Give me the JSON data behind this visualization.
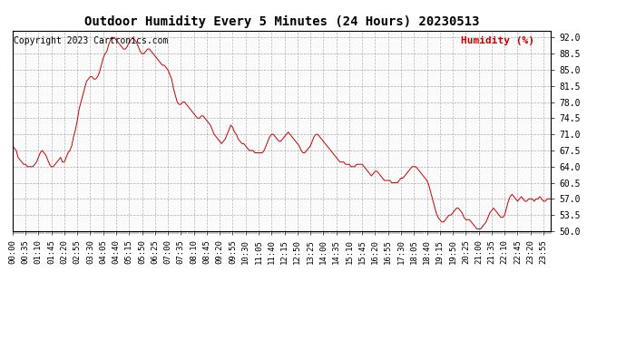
{
  "title": "Outdoor Humidity Every 5 Minutes (24 Hours) 20230513",
  "copyright_text": "Copyright 2023 Cartronics.com",
  "legend_text": "Humidity (%)",
  "line_color": "#cc0000",
  "background_color": "#ffffff",
  "grid_color": "#999999",
  "ylim": [
    50.0,
    93.5
  ],
  "yticks": [
    50.0,
    53.5,
    57.0,
    60.5,
    64.0,
    67.5,
    71.0,
    74.5,
    78.0,
    81.5,
    85.0,
    88.5,
    92.0
  ],
  "humidity_values": [
    68.5,
    68.0,
    67.5,
    66.0,
    65.5,
    65.0,
    64.5,
    64.5,
    64.0,
    64.0,
    64.0,
    64.0,
    64.5,
    65.0,
    66.0,
    67.0,
    67.5,
    67.0,
    66.5,
    65.5,
    64.5,
    64.0,
    64.0,
    64.5,
    65.0,
    65.5,
    66.0,
    65.0,
    65.0,
    66.0,
    67.0,
    67.5,
    68.5,
    70.5,
    72.0,
    74.0,
    76.5,
    78.0,
    79.5,
    81.0,
    82.5,
    83.0,
    83.5,
    83.5,
    83.0,
    83.0,
    83.5,
    84.5,
    86.0,
    87.5,
    88.5,
    89.0,
    90.5,
    91.5,
    92.0,
    92.0,
    91.5,
    91.0,
    90.5,
    90.0,
    89.5,
    89.5,
    90.0,
    91.0,
    91.5,
    92.0,
    91.5,
    91.0,
    90.0,
    89.0,
    88.5,
    88.5,
    89.0,
    89.5,
    89.5,
    89.0,
    88.5,
    88.0,
    87.5,
    87.0,
    86.5,
    86.0,
    86.0,
    85.5,
    85.0,
    84.0,
    83.0,
    81.0,
    79.5,
    78.0,
    77.5,
    77.5,
    78.0,
    78.0,
    77.5,
    77.0,
    76.5,
    76.0,
    75.5,
    75.0,
    74.5,
    74.5,
    75.0,
    75.0,
    74.5,
    74.0,
    73.5,
    73.0,
    72.0,
    71.0,
    70.5,
    70.0,
    69.5,
    69.0,
    69.5,
    70.0,
    71.0,
    72.0,
    73.0,
    72.5,
    71.5,
    71.0,
    70.0,
    69.5,
    69.0,
    69.0,
    68.5,
    68.0,
    67.5,
    67.5,
    67.5,
    67.0,
    67.0,
    67.0,
    67.0,
    67.0,
    67.5,
    68.5,
    69.5,
    70.5,
    71.0,
    71.0,
    70.5,
    70.0,
    69.5,
    69.5,
    70.0,
    70.5,
    71.0,
    71.5,
    71.0,
    70.5,
    70.0,
    69.5,
    69.0,
    68.5,
    67.5,
    67.0,
    67.0,
    67.5,
    68.0,
    68.5,
    69.5,
    70.5,
    71.0,
    71.0,
    70.5,
    70.0,
    69.5,
    69.0,
    68.5,
    68.0,
    67.5,
    67.0,
    66.5,
    66.0,
    65.5,
    65.0,
    65.0,
    65.0,
    64.5,
    64.5,
    64.5,
    64.0,
    64.0,
    64.0,
    64.5,
    64.5,
    64.5,
    64.5,
    64.0,
    63.5,
    63.0,
    62.5,
    62.0,
    62.5,
    63.0,
    63.0,
    62.5,
    62.0,
    61.5,
    61.0,
    61.0,
    61.0,
    61.0,
    60.5,
    60.5,
    60.5,
    60.5,
    61.0,
    61.5,
    61.5,
    62.0,
    62.5,
    63.0,
    63.5,
    64.0,
    64.0,
    64.0,
    63.5,
    63.0,
    62.5,
    62.0,
    61.5,
    61.0,
    60.0,
    58.5,
    57.0,
    55.5,
    54.0,
    53.0,
    52.5,
    52.0,
    52.0,
    52.5,
    53.0,
    53.5,
    53.5,
    54.0,
    54.5,
    55.0,
    55.0,
    54.5,
    54.0,
    53.0,
    52.5,
    52.5,
    52.5,
    52.0,
    51.5,
    51.0,
    50.5,
    50.5,
    50.5,
    51.0,
    51.5,
    52.0,
    53.0,
    54.0,
    54.5,
    55.0,
    54.5,
    54.0,
    53.5,
    53.0,
    53.0,
    53.5,
    55.0,
    56.5,
    57.5,
    58.0,
    57.5,
    57.0,
    56.5,
    57.0,
    57.5,
    57.0,
    56.5,
    56.5,
    57.0,
    57.0,
    57.0,
    56.5,
    57.0,
    57.0,
    57.5,
    57.0,
    56.5,
    56.5,
    57.0,
    57.0,
    57.0
  ],
  "title_fontsize": 10,
  "tick_fontsize": 6.5,
  "legend_fontsize": 8,
  "copyright_fontsize": 7
}
